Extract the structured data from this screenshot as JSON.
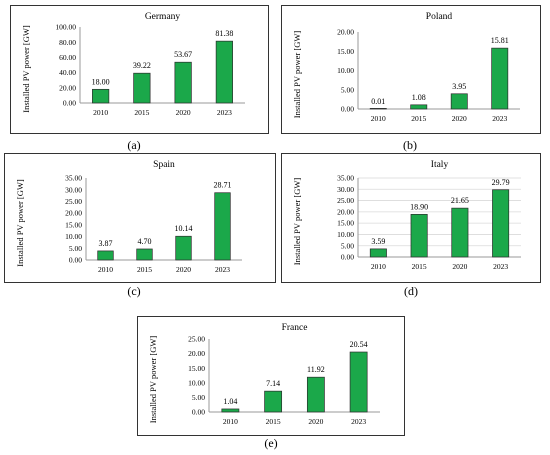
{
  "colors": {
    "bar": "#1ba84a",
    "axis": "#9a9a9a",
    "grid": "#d9d9d9"
  },
  "chart_data": [
    {
      "type": "bar",
      "title": "Germany",
      "ylabel": "Installed PV power [GW]",
      "xlabel": "",
      "caption": "(a)",
      "categories": [
        "2010",
        "2015",
        "2020",
        "2023"
      ],
      "values": [
        18.0,
        39.22,
        53.67,
        81.38
      ],
      "value_labels": [
        "18.00",
        "39.22",
        "53.67",
        "81.38"
      ],
      "ylim": [
        0,
        100
      ],
      "yticks": [
        "0.00",
        "20.00",
        "40.00",
        "60.00",
        "80.00",
        "100.00"
      ],
      "grid": false,
      "legend": "none"
    },
    {
      "type": "bar",
      "title": "Poland",
      "ylabel": "Installed PV power [GW]",
      "xlabel": "",
      "caption": "(b)",
      "categories": [
        "2010",
        "2015",
        "2020",
        "2023"
      ],
      "values": [
        0.01,
        1.08,
        3.95,
        15.81
      ],
      "value_labels": [
        "0.01",
        "1.08",
        "3.95",
        "15.81"
      ],
      "ylim": [
        0,
        20
      ],
      "yticks": [
        "0.00",
        "5.00",
        "10.00",
        "15.00",
        "20.00"
      ],
      "grid": false,
      "legend": "none"
    },
    {
      "type": "bar",
      "title": "Spain",
      "ylabel": "Installed  PV power  [GW]",
      "xlabel": "",
      "caption": "(c)",
      "categories": [
        "2010",
        "2015",
        "2020",
        "2023"
      ],
      "values": [
        3.87,
        4.7,
        10.14,
        28.71
      ],
      "value_labels": [
        "3.87",
        "4.70",
        "10.14",
        "28.71"
      ],
      "ylim": [
        0,
        35
      ],
      "yticks": [
        "0.00",
        "5.00",
        "10.00",
        "15.00",
        "20.00",
        "25.00",
        "30.00",
        "35.00"
      ],
      "grid": false,
      "legend": "none"
    },
    {
      "type": "bar",
      "title": "Italy",
      "ylabel": "Installed PV power [GW]",
      "xlabel": "",
      "caption": "(d)",
      "categories": [
        "2010",
        "2015",
        "2020",
        "2023"
      ],
      "values": [
        3.59,
        18.9,
        21.65,
        29.79
      ],
      "value_labels": [
        "3.59",
        "18.90",
        "21.65",
        "29.79"
      ],
      "ylim": [
        0,
        35
      ],
      "yticks": [
        "0.00",
        "5.00",
        "10.00",
        "15.00",
        "20.00",
        "25.00",
        "30.00",
        "35.00"
      ],
      "grid": true,
      "legend": "none"
    },
    {
      "type": "bar",
      "title": "France",
      "ylabel": "Installed PV power [GW]",
      "xlabel": "",
      "caption": "(e)",
      "categories": [
        "2010",
        "2015",
        "2020",
        "2023"
      ],
      "values": [
        1.04,
        7.14,
        11.92,
        20.54
      ],
      "value_labels": [
        "1.04",
        "7.14",
        "11.92",
        "20.54"
      ],
      "ylim": [
        0,
        25
      ],
      "yticks": [
        "0.00",
        "5.00",
        "10.00",
        "15.00",
        "20.00",
        "25.00"
      ],
      "grid": false,
      "legend": "none"
    }
  ]
}
